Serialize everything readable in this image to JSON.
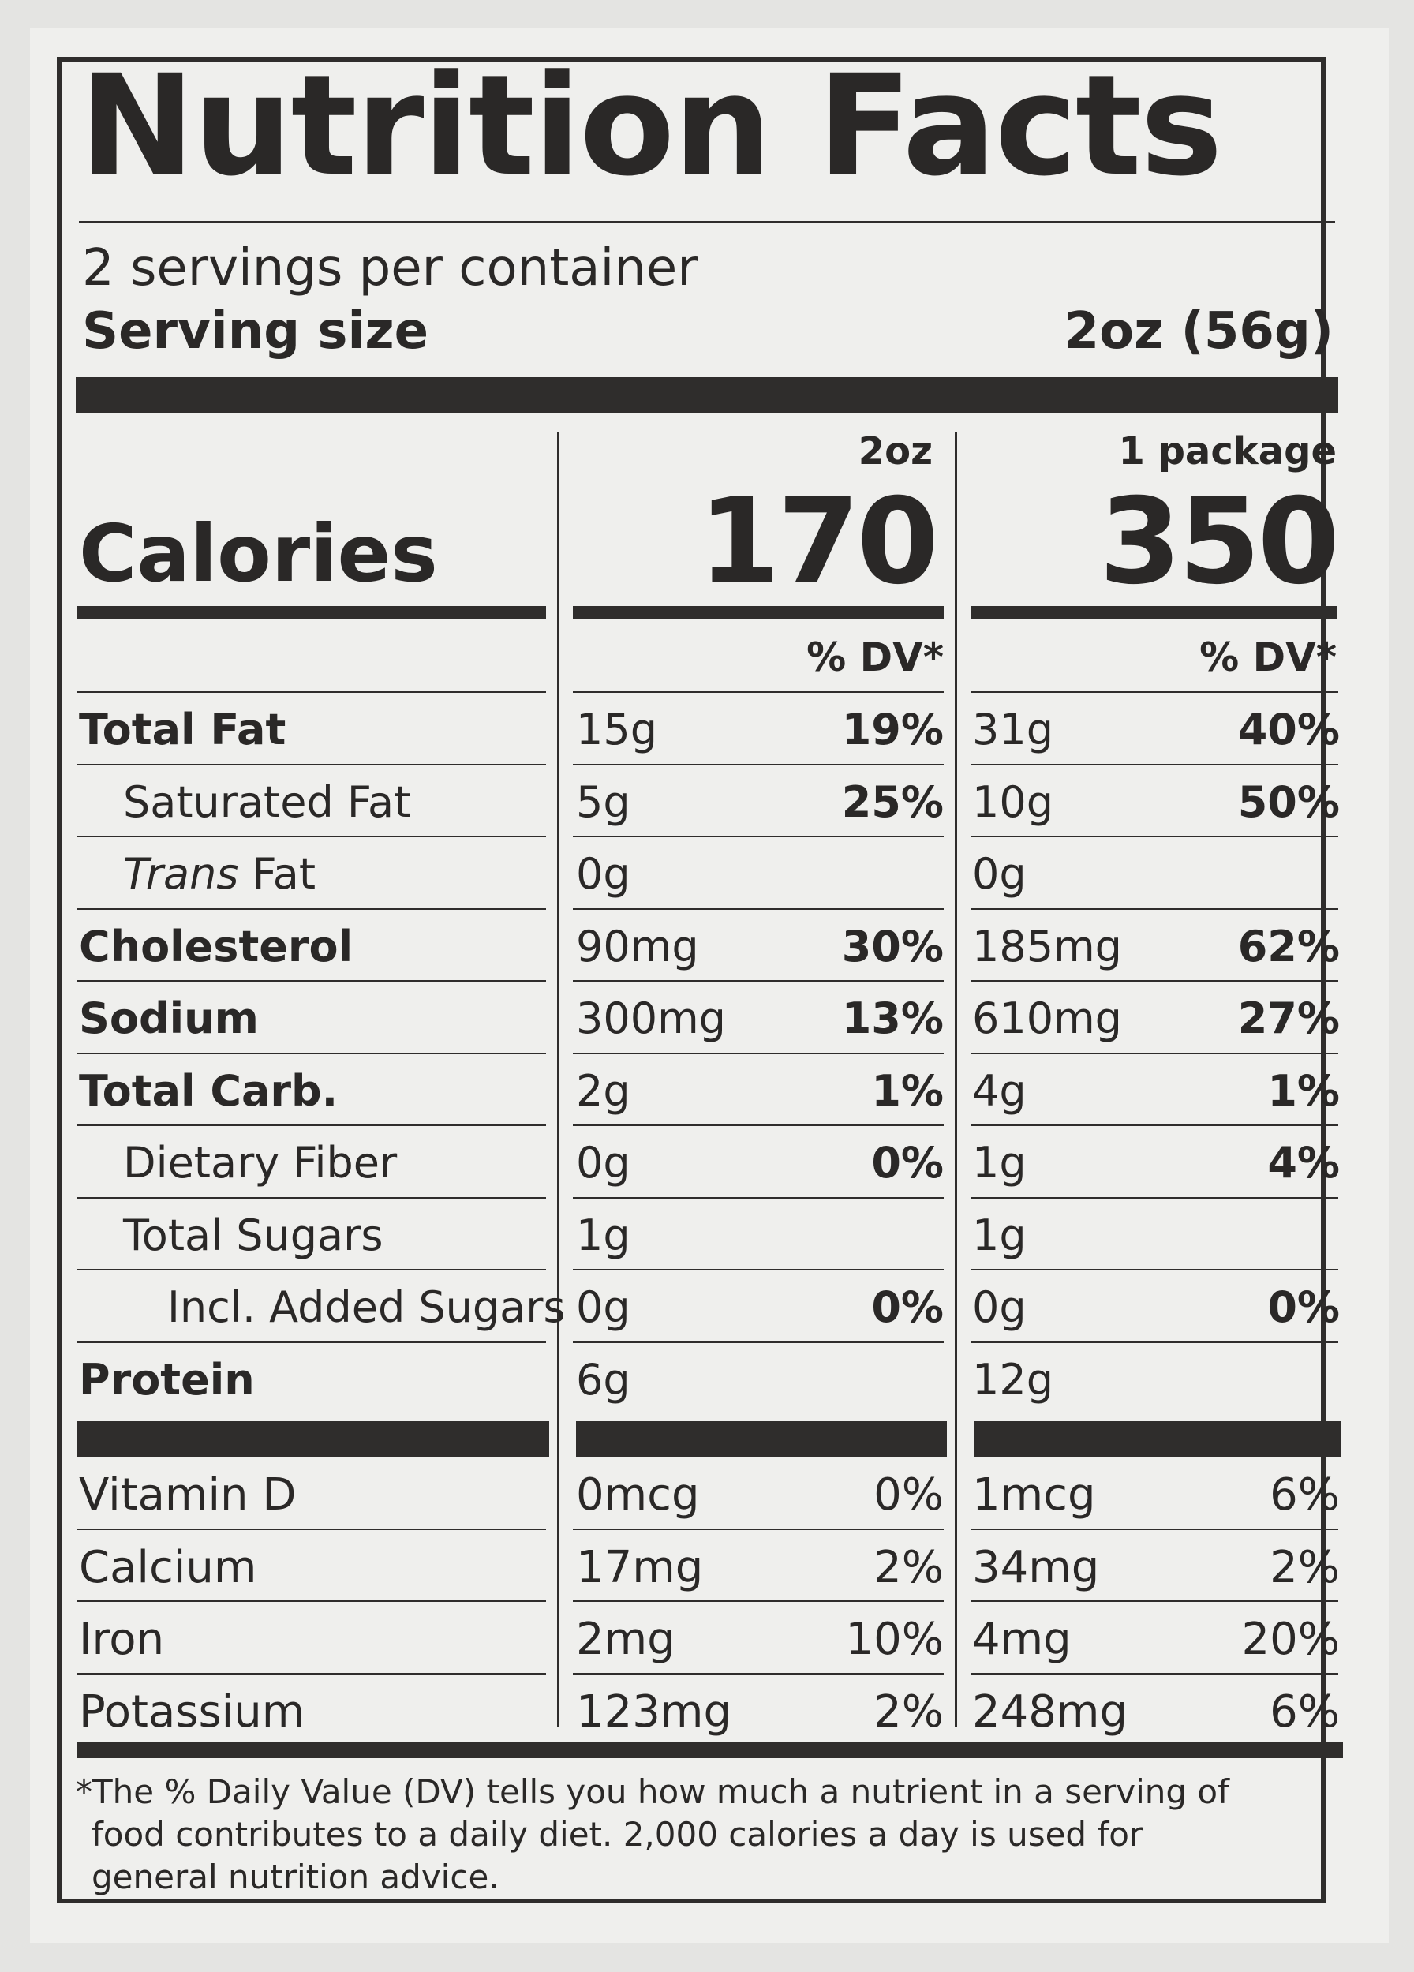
{
  "title": "Nutrition Facts",
  "servings_per_container": "2 servings per container",
  "serving_size_label": "Serving size",
  "serving_size_value": "2oz (56g)",
  "columns": [
    {
      "header": "2oz",
      "calories": "170",
      "dv_header": "% DV*"
    },
    {
      "header": "1 package",
      "calories": "350",
      "dv_header": "% DV*"
    }
  ],
  "calories_label": "Calories",
  "nutrients": [
    {
      "name": "Total Fat",
      "bold": true,
      "indent": 0,
      "col1_amount": "15g",
      "col1_dv": "19%",
      "col2_amount": "31g",
      "col2_dv": "40%"
    },
    {
      "name": "Saturated Fat",
      "bold": false,
      "indent": 1,
      "col1_amount": "5g",
      "col1_dv": "25%",
      "col2_amount": "10g",
      "col2_dv": "50%"
    },
    {
      "name_italic": "Trans",
      "name": " Fat",
      "bold": false,
      "indent": 1,
      "col1_amount": "0g",
      "col1_dv": "",
      "col2_amount": "0g",
      "col2_dv": ""
    },
    {
      "name": "Cholesterol",
      "bold": true,
      "indent": 0,
      "col1_amount": "90mg",
      "col1_dv": "30%",
      "col2_amount": "185mg",
      "col2_dv": "62%"
    },
    {
      "name": "Sodium",
      "bold": true,
      "indent": 0,
      "col1_amount": "300mg",
      "col1_dv": "13%",
      "col2_amount": "610mg",
      "col2_dv": "27%"
    },
    {
      "name": "Total Carb.",
      "bold": true,
      "indent": 0,
      "col1_amount": "2g",
      "col1_dv": "1%",
      "col2_amount": "4g",
      "col2_dv": "1%"
    },
    {
      "name": "Dietary Fiber",
      "bold": false,
      "indent": 1,
      "col1_amount": "0g",
      "col1_dv": "0%",
      "col2_amount": "1g",
      "col2_dv": "4%"
    },
    {
      "name": "Total Sugars",
      "bold": false,
      "indent": 1,
      "col1_amount": "1g",
      "col1_dv": "",
      "col2_amount": "1g",
      "col2_dv": ""
    },
    {
      "name": "Incl. Added Sugars",
      "bold": false,
      "indent": 2,
      "col1_amount": "0g",
      "col1_dv": "0%",
      "col2_amount": "0g",
      "col2_dv": "0%"
    },
    {
      "name": "Protein",
      "bold": true,
      "indent": 0,
      "col1_amount": "6g",
      "col1_dv": "",
      "col2_amount": "12g",
      "col2_dv": ""
    }
  ],
  "vitamins": [
    {
      "name": "Vitamin D",
      "col1_amount": "0mcg",
      "col1_dv": "0%",
      "col2_amount": "1mcg",
      "col2_dv": "6%"
    },
    {
      "name": "Calcium",
      "col1_amount": "17mg",
      "col1_dv": "2%",
      "col2_amount": "34mg",
      "col2_dv": "2%"
    },
    {
      "name": "Iron",
      "col1_amount": "2mg",
      "col1_dv": "10%",
      "col2_amount": "4mg",
      "col2_dv": "20%"
    },
    {
      "name": "Potassium",
      "col1_amount": "123mg",
      "col1_dv": "2%",
      "col2_amount": "248mg",
      "col2_dv": "6%"
    }
  ],
  "footnote": [
    "*The % Daily Value (DV) tells you how much a nutrient in a serving of",
    "food contributes to a daily diet. 2,000 calories a day is used for",
    "general nutrition advice."
  ]
}
